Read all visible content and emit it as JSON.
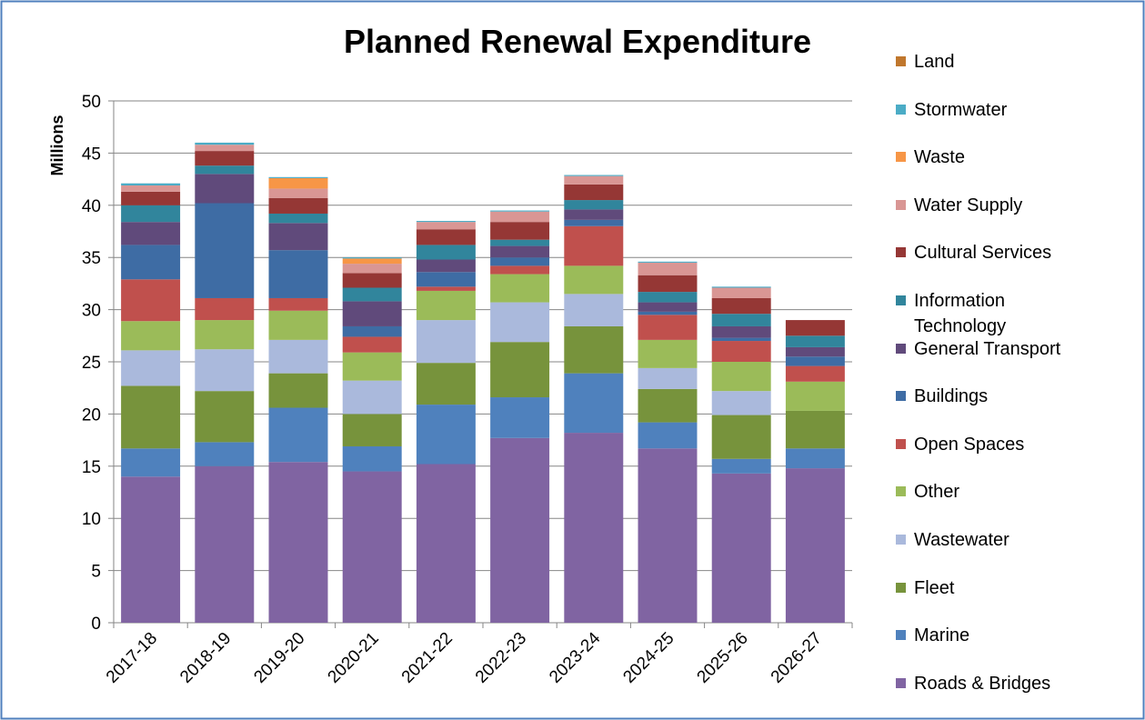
{
  "chart_data": {
    "type": "stacked_bar",
    "title": "Planned Renewal Expenditure",
    "y_label": "Millions",
    "categories": [
      "2017-18",
      "2018-19",
      "2019-20",
      "2020-21",
      "2021-22",
      "2022-23",
      "2023-24",
      "2024-25",
      "2025-26",
      "2026-27"
    ],
    "series": [
      {
        "name": "Roads & Bridges",
        "color": "#8064a2",
        "values": [
          14.0,
          15.0,
          15.4,
          14.5,
          15.2,
          17.7,
          18.2,
          16.7,
          14.3,
          14.8
        ]
      },
      {
        "name": "Marine",
        "color": "#4f81bd",
        "values": [
          2.7,
          2.3,
          5.2,
          2.4,
          5.7,
          3.9,
          5.7,
          2.5,
          1.4,
          1.9
        ]
      },
      {
        "name": "Fleet",
        "color": "#77933c",
        "values": [
          6.0,
          4.9,
          3.3,
          3.1,
          4.0,
          5.3,
          4.5,
          3.2,
          4.2,
          3.6
        ]
      },
      {
        "name": "Wastewater",
        "color": "#aab9dc",
        "values": [
          3.4,
          4.0,
          3.2,
          3.2,
          4.1,
          3.8,
          3.1,
          2.0,
          2.3,
          0
        ]
      },
      {
        "name": "Other",
        "color": "#9bbb59",
        "values": [
          2.8,
          2.8,
          2.8,
          2.7,
          2.8,
          2.7,
          2.7,
          2.7,
          2.8,
          2.8
        ]
      },
      {
        "name": "Open Spaces",
        "color": "#c0504d",
        "values": [
          4.0,
          2.1,
          1.2,
          1.5,
          0.4,
          0.8,
          3.8,
          2.4,
          2.0,
          1.5
        ]
      },
      {
        "name": "Buildings",
        "color": "#3e6ca4",
        "values": [
          3.3,
          9.1,
          4.6,
          1.0,
          1.4,
          0.8,
          0.6,
          0.3,
          0.3,
          0.9
        ]
      },
      {
        "name": "General Transport",
        "color": "#604a7b",
        "values": [
          2.2,
          2.8,
          2.6,
          2.4,
          1.2,
          1.1,
          1.0,
          0.9,
          1.1,
          0.9
        ]
      },
      {
        "name": "Information Technology",
        "color": "#31859c",
        "values": [
          1.6,
          0.8,
          0.9,
          1.3,
          1.4,
          0.6,
          0.9,
          1.0,
          1.2,
          1.1
        ]
      },
      {
        "name": "Cultural Services",
        "color": "#953735",
        "values": [
          1.3,
          1.4,
          1.5,
          1.4,
          1.5,
          1.7,
          1.5,
          1.6,
          1.5,
          1.5
        ]
      },
      {
        "name": "Water Supply",
        "color": "#d99694",
        "values": [
          0.6,
          0.6,
          0.9,
          0.9,
          0.7,
          1.0,
          0.8,
          1.2,
          1.0,
          0
        ]
      },
      {
        "name": "Waste",
        "color": "#f79646",
        "values": [
          0,
          0,
          1.0,
          0.5,
          0,
          0,
          0,
          0,
          0,
          0
        ]
      },
      {
        "name": "Stormwater",
        "color": "#4bacc6",
        "values": [
          0.2,
          0.2,
          0.1,
          0.1,
          0.1,
          0.1,
          0.1,
          0.1,
          0.1,
          0
        ]
      },
      {
        "name": "Land",
        "color": "#c0772d",
        "values": [
          0,
          0,
          0,
          0,
          0,
          0,
          0,
          0,
          0,
          0
        ]
      }
    ],
    "ylim": [
      0,
      50
    ],
    "yticks": [
      0,
      5,
      10,
      15,
      20,
      25,
      30,
      35,
      40,
      45,
      50
    ],
    "grid": true,
    "legend": "right"
  }
}
